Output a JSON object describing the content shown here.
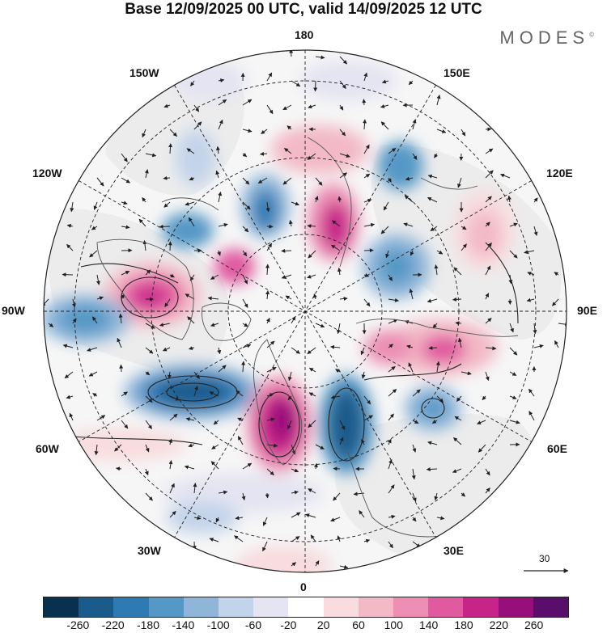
{
  "header": {
    "title": "Base 12/09/2025 00 UTC, valid 14/09/2025 12 UTC",
    "brand": "MODES",
    "brand_mark": "©"
  },
  "map": {
    "projection": "north-polar-stereographic",
    "longitude_labels": {
      "top": "180",
      "upper_right": "150E",
      "right_upper": "120E",
      "right": "90E",
      "right_lower": "60E",
      "lower_right": "30E",
      "bottom": "0",
      "lower_left": "30W",
      "left_lower": "60W",
      "left": "90W",
      "left_upper": "120W",
      "upper_left": "150W"
    },
    "anomaly_features": [
      {
        "sign": "negative",
        "value": -240,
        "region": "North Atlantic south of Greenland"
      },
      {
        "sign": "positive",
        "value": 240,
        "region": "Greenland / Iceland"
      },
      {
        "sign": "negative",
        "value": -260,
        "region": "Norwegian Sea / Scandinavia"
      },
      {
        "sign": "positive",
        "value": 200,
        "region": "Hudson Bay / Canada"
      },
      {
        "sign": "positive",
        "value": 160,
        "region": "West Siberia"
      },
      {
        "sign": "positive",
        "value": 180,
        "region": "East Siberian Sea"
      },
      {
        "sign": "negative",
        "value": -140,
        "region": "Caspian region"
      }
    ],
    "reference_vector": {
      "value": "30"
    }
  },
  "colorbar": {
    "colors": [
      "#08304f",
      "#1a5b8c",
      "#2f7ab3",
      "#5598c6",
      "#8fb6d9",
      "#c3d4ea",
      "#e4e4f2",
      "#ffffff",
      "#f8dcdf",
      "#f3b9c6",
      "#ec8fb3",
      "#e05aa0",
      "#c72489",
      "#97107a",
      "#5a0e6b"
    ],
    "labels": [
      "-260",
      "-220",
      "-180",
      "-140",
      "-100",
      "-60",
      "-20",
      "20",
      "60",
      "100",
      "140",
      "180",
      "220",
      "260"
    ]
  }
}
